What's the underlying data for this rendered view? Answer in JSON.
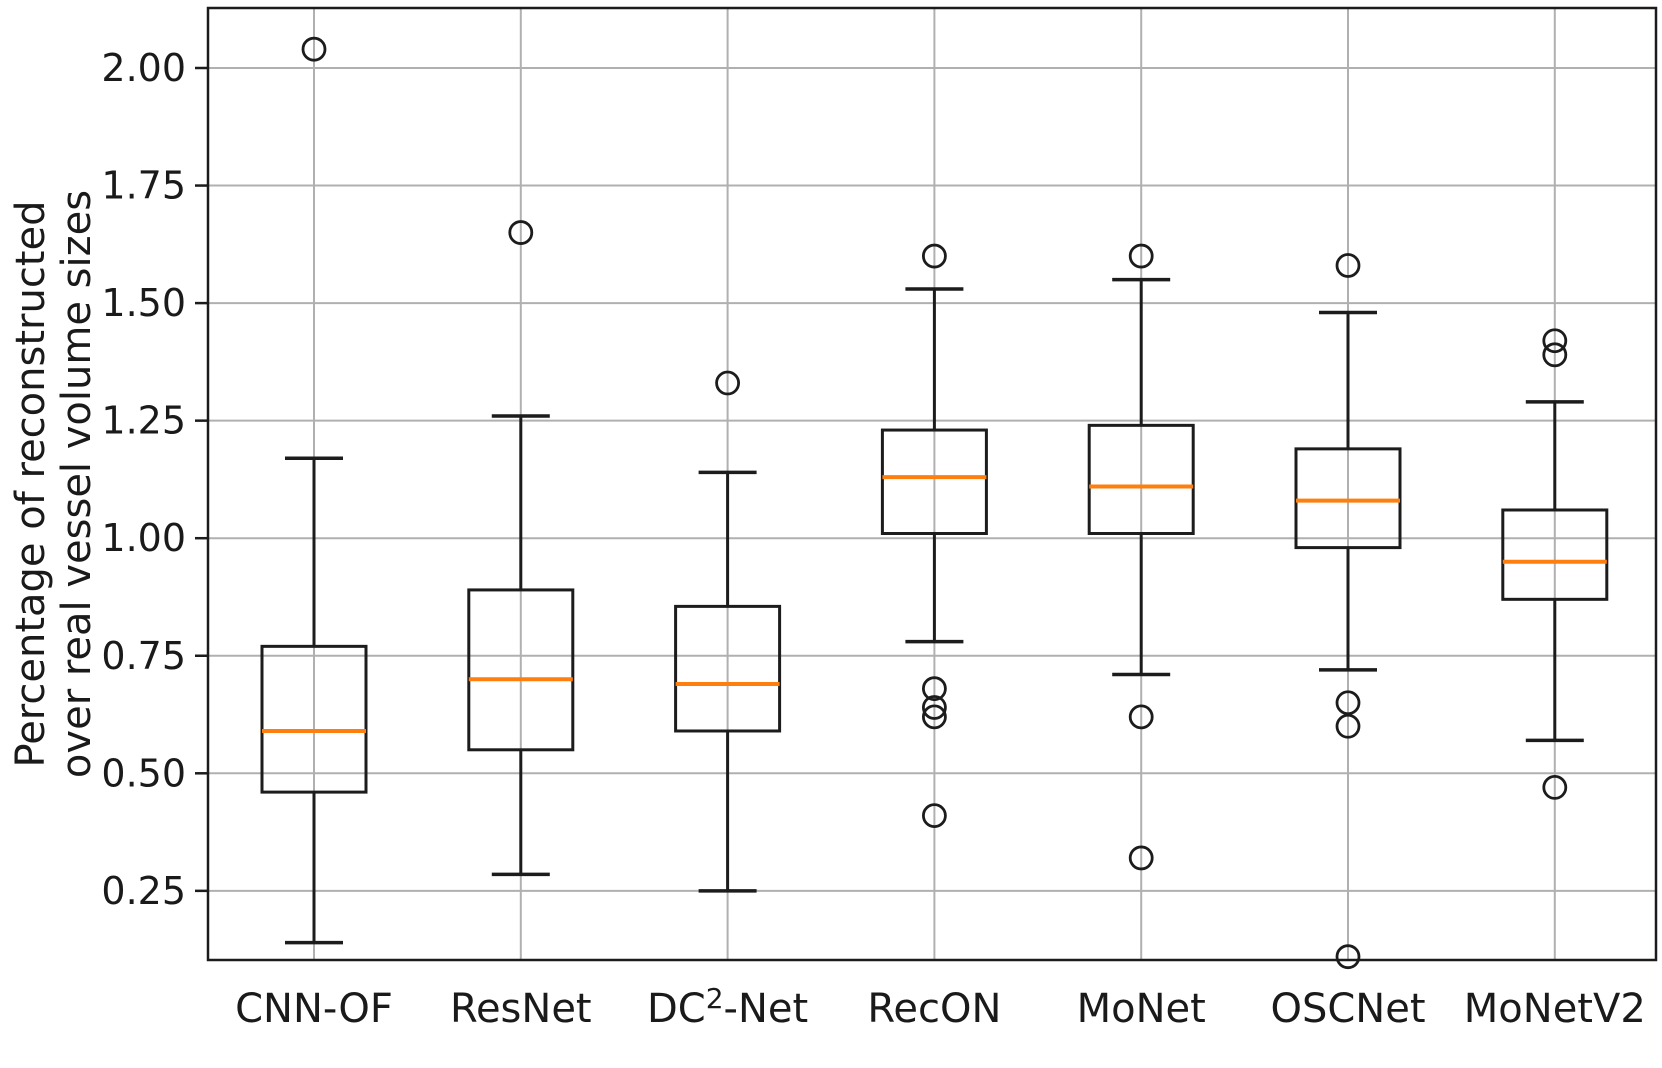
{
  "chart_data": {
    "type": "boxplot",
    "title": "",
    "ylabel": "Percentage of reconstructed over real vessel volume sizes",
    "ylabel_lines": [
      "Percentage of reconstructed",
      "over real vessel volume sizes"
    ],
    "xlabel": "",
    "ytick_labels": [
      "0.25",
      "0.50",
      "0.75",
      "1.00",
      "1.25",
      "1.50",
      "1.75",
      "2.00"
    ],
    "ytick_values": [
      0.25,
      0.5,
      0.75,
      1.0,
      1.25,
      1.5,
      1.75,
      2.0
    ],
    "ylim": [
      0.1,
      2.13
    ],
    "grid": true,
    "legend": false,
    "categories": [
      "CNN-OF",
      "ResNet",
      "DC²-Net",
      "RecON",
      "MoNet",
      "OSCNet",
      "MoNetV2"
    ],
    "boxes": [
      {
        "category": "CNN-OF",
        "whisker_low": 0.14,
        "q1": 0.46,
        "median": 0.59,
        "q3": 0.77,
        "whisker_high": 1.17,
        "outliers": [
          2.04
        ]
      },
      {
        "category": "ResNet",
        "whisker_low": 0.285,
        "q1": 0.55,
        "median": 0.7,
        "q3": 0.89,
        "whisker_high": 1.26,
        "outliers": [
          1.65
        ]
      },
      {
        "category": "DC²-Net",
        "label_pre": "DC",
        "label_sup": "2",
        "label_post": "-Net",
        "whisker_low": 0.25,
        "q1": 0.59,
        "median": 0.69,
        "q3": 0.855,
        "whisker_high": 1.14,
        "outliers": [
          1.33
        ]
      },
      {
        "category": "RecON",
        "whisker_low": 0.78,
        "q1": 1.01,
        "median": 1.13,
        "q3": 1.23,
        "whisker_high": 1.53,
        "outliers": [
          1.6,
          0.68,
          0.64,
          0.62,
          0.41
        ]
      },
      {
        "category": "MoNet",
        "whisker_low": 0.71,
        "q1": 1.01,
        "median": 1.11,
        "q3": 1.24,
        "whisker_high": 1.55,
        "outliers": [
          1.6,
          0.62,
          0.32
        ]
      },
      {
        "category": "OSCNet",
        "whisker_low": 0.72,
        "q1": 0.98,
        "median": 1.08,
        "q3": 1.19,
        "whisker_high": 1.48,
        "outliers": [
          1.58,
          0.65,
          0.6,
          0.11
        ]
      },
      {
        "category": "MoNetV2",
        "whisker_low": 0.57,
        "q1": 0.87,
        "median": 0.95,
        "q3": 1.06,
        "whisker_high": 1.29,
        "outliers": [
          1.42,
          1.39,
          0.47
        ]
      }
    ],
    "colors": {
      "median": "#ff7f0e",
      "box_edge": "#1c1c1c",
      "grid": "#b0b0b0",
      "spine": "#1c1c1c",
      "background": "#ffffff"
    }
  }
}
